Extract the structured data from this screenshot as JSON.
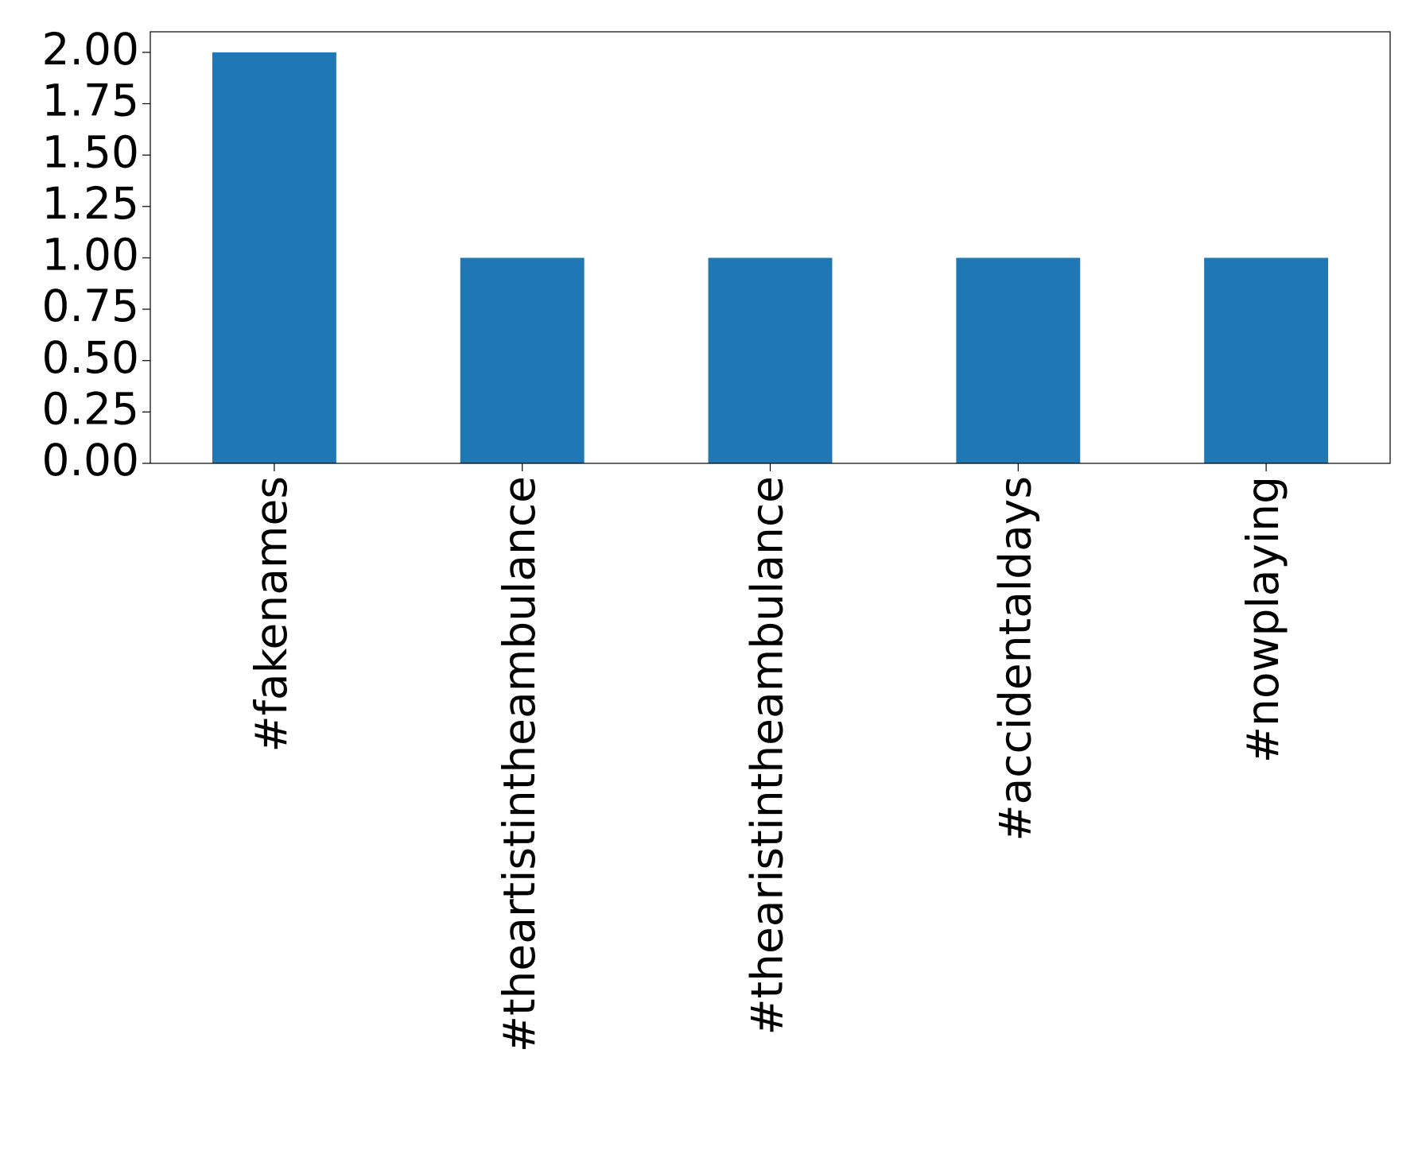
{
  "chart_data": {
    "type": "bar",
    "categories": [
      "#fakenames",
      "#theartistintheambulance",
      "#thearistintheambulance",
      "#accidentaldays",
      "#nowplaying"
    ],
    "values": [
      2,
      1,
      1,
      1,
      1
    ],
    "color": "#1f77b4",
    "ylim": [
      0,
      2.1
    ],
    "yticks": [
      {
        "value": 0,
        "label": "0.00"
      },
      {
        "value": 0.25,
        "label": "0.25"
      },
      {
        "value": 0.5,
        "label": "0.50"
      },
      {
        "value": 0.75,
        "label": "0.75"
      },
      {
        "value": 1,
        "label": "1.00"
      },
      {
        "value": 1.25,
        "label": "1.25"
      },
      {
        "value": 1.5,
        "label": "1.50"
      },
      {
        "value": 1.75,
        "label": "1.75"
      },
      {
        "value": 2,
        "label": "2.00"
      }
    ],
    "grid": false
  }
}
